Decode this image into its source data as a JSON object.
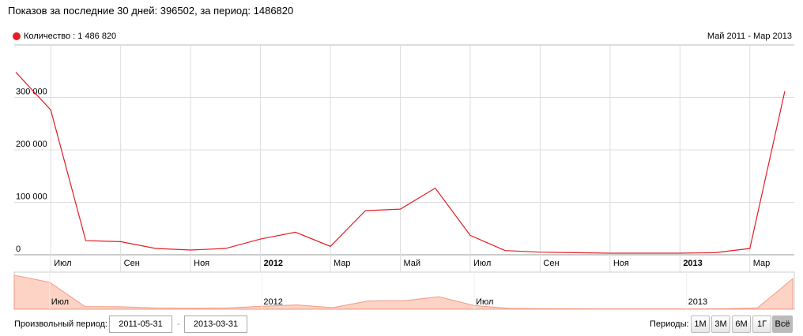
{
  "header": {
    "text": "Показов за последние 30 дней: 396502, за период: 1486820"
  },
  "chart_data": {
    "type": "line",
    "range_label": "Май 2011 - Мар 2013",
    "x": [
      "2011-05",
      "2011-06",
      "2011-07",
      "2011-08",
      "2011-09",
      "2011-10",
      "2011-11",
      "2011-12",
      "2012-01",
      "2012-02",
      "2012-03",
      "2012-04",
      "2012-05",
      "2012-06",
      "2012-07",
      "2012-08",
      "2012-09",
      "2012-10",
      "2012-11",
      "2012-12",
      "2013-01",
      "2013-02",
      "2013-03"
    ],
    "series": [
      {
        "name": "Количество : 1 486 820",
        "color": "#e31e24",
        "values": [
          348000,
          276000,
          27000,
          25000,
          12000,
          9000,
          12000,
          30000,
          43000,
          16000,
          84000,
          87000,
          127000,
          37000,
          8000,
          5000,
          4000,
          3000,
          3000,
          3000,
          4000,
          12000,
          312000
        ]
      }
    ],
    "ylim": [
      0,
      400000
    ],
    "yticks": [
      0,
      {
        "value": 100000,
        "label": "100 000"
      },
      {
        "value": 200000,
        "label": "200 000"
      },
      {
        "value": 300000,
        "label": "300 000"
      }
    ],
    "xticks": [
      {
        "value": "2011-07",
        "label": "Июл"
      },
      {
        "value": "2011-09",
        "label": "Сен"
      },
      {
        "value": "2011-11",
        "label": "Ноя"
      },
      {
        "value": "2012-01",
        "label": "2012"
      },
      {
        "value": "2012-03",
        "label": "Мар"
      },
      {
        "value": "2012-05",
        "label": "Май"
      },
      {
        "value": "2012-07",
        "label": "Июл"
      },
      {
        "value": "2012-09",
        "label": "Сен"
      },
      {
        "value": "2012-11",
        "label": "Ноя"
      },
      {
        "value": "2013-01",
        "label": "2013"
      },
      {
        "value": "2013-03",
        "label": "Мар"
      }
    ],
    "navigator_ticks": [
      {
        "value": "2011-07",
        "label": "Июл"
      },
      {
        "value": "2012-01",
        "label": "2012"
      },
      {
        "value": "2012-07",
        "label": "Июл"
      },
      {
        "value": "2013-01",
        "label": "2013"
      }
    ],
    "grid": true
  },
  "controls": {
    "custom_period": "Произвольный период:",
    "from": "2011-05-31",
    "to": "2013-03-31",
    "periods_label": "Периоды:",
    "buttons": [
      "1М",
      "3М",
      "6М",
      "1Г",
      "Всё"
    ]
  }
}
